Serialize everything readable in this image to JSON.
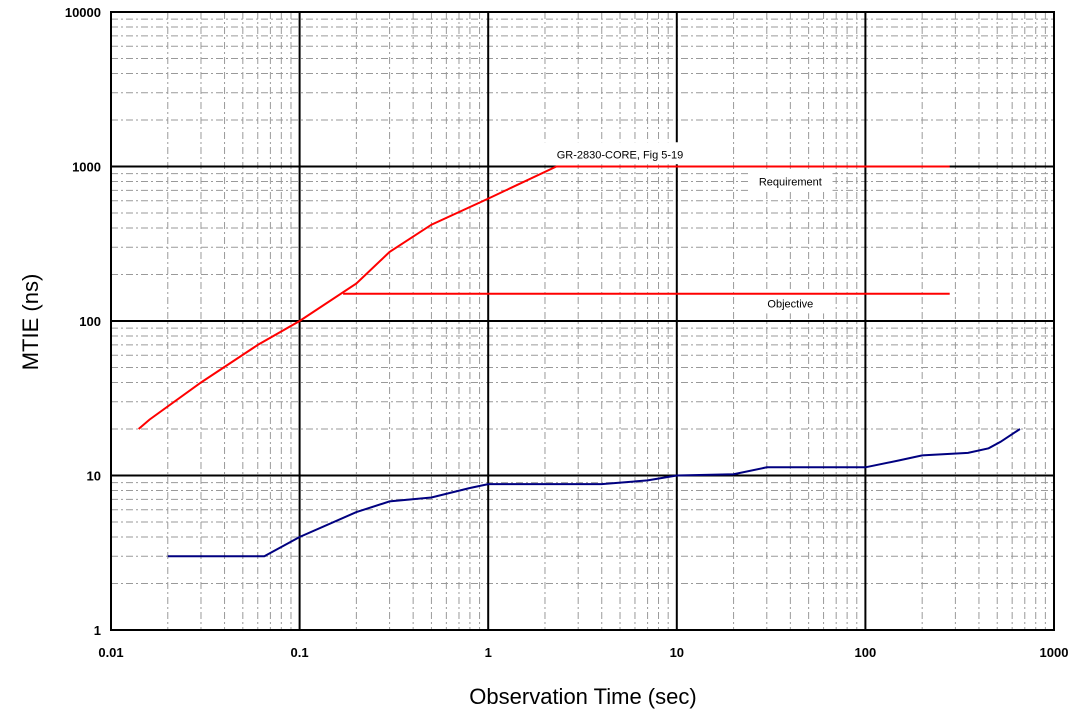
{
  "chart_data": {
    "type": "line",
    "x_scale": "log",
    "y_scale": "log",
    "xlim": [
      0.01,
      1000
    ],
    "ylim": [
      1,
      10000
    ],
    "xlabel": "Observation Time (sec)",
    "ylabel": "MTIE (ns)",
    "x_ticks": [
      0.01,
      0.1,
      1,
      10,
      100,
      1000
    ],
    "x_tick_labels": [
      "0.01",
      "0.1",
      "1",
      "10",
      "100",
      "1000"
    ],
    "y_ticks": [
      1,
      10,
      100,
      1000,
      10000
    ],
    "y_tick_labels": [
      "1",
      "10",
      "100",
      "1000",
      "10000"
    ],
    "grid": "major and minor, dash-dot minor lines",
    "series": [
      {
        "name": "Requirement",
        "color": "#ff0000",
        "x": [
          0.014,
          0.016,
          0.03,
          0.06,
          0.1,
          0.2,
          0.3,
          0.5,
          1,
          2.3,
          280
        ],
        "y": [
          20,
          23,
          40,
          70,
          100,
          175,
          280,
          420,
          620,
          1000,
          1000
        ]
      },
      {
        "name": "Objective",
        "color": "#ff0000",
        "x": [
          0.17,
          280
        ],
        "y": [
          150,
          150
        ]
      },
      {
        "name": "",
        "color": "#000080",
        "x": [
          0.02,
          0.065,
          0.1,
          0.2,
          0.3,
          0.5,
          0.8,
          1,
          2,
          4,
          7,
          10,
          20,
          30,
          100,
          150,
          200,
          350,
          450,
          520,
          660
        ],
        "y": [
          3,
          3,
          4,
          5.8,
          6.8,
          7.2,
          8.3,
          8.8,
          8.8,
          8.8,
          9.3,
          10,
          10.2,
          11.3,
          11.3,
          12.5,
          13.5,
          14,
          15,
          16.5,
          20
        ]
      }
    ],
    "annotations": [
      {
        "text": "GR-2830-CORE, Fig 5-19",
        "x": 5,
        "y": 1200
      },
      {
        "text": "Requirement",
        "x": 40,
        "y": 800
      },
      {
        "text": "Objective",
        "x": 40,
        "y": 130
      }
    ]
  }
}
